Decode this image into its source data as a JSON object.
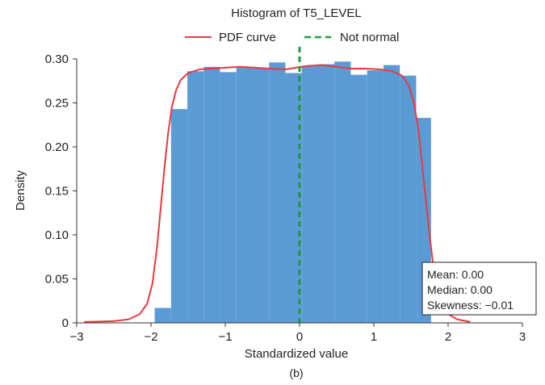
{
  "chart_data": {
    "type": "bar",
    "title": "Histogram of T5_LEVEL",
    "xlabel": "Standardized value",
    "ylabel": "Density",
    "xlim": [
      -3,
      3
    ],
    "ylim": [
      0,
      0.3
    ],
    "xticks": [
      -3,
      -2,
      -1,
      0,
      1,
      2,
      3
    ],
    "xtick_labels": [
      "−3",
      "−2",
      "−1",
      "0",
      "1",
      "2",
      "3"
    ],
    "yticks": [
      0,
      0.05,
      0.1,
      0.15,
      0.2,
      0.25,
      0.3
    ],
    "ytick_labels": [
      "0",
      "0.05",
      "0.10",
      "0.15",
      "0.20",
      "0.25",
      "0.30"
    ],
    "grid": false,
    "bins": [
      {
        "x0": -1.95,
        "x1": -1.73,
        "value": 0.017
      },
      {
        "x0": -1.73,
        "x1": -1.51,
        "value": 0.243
      },
      {
        "x0": -1.51,
        "x1": -1.29,
        "value": 0.286
      },
      {
        "x0": -1.29,
        "x1": -1.07,
        "value": 0.291
      },
      {
        "x0": -1.07,
        "x1": -0.85,
        "value": 0.285
      },
      {
        "x0": -0.85,
        "x1": -0.63,
        "value": 0.29
      },
      {
        "x0": -0.63,
        "x1": -0.41,
        "value": 0.289
      },
      {
        "x0": -0.41,
        "x1": -0.19,
        "value": 0.296
      },
      {
        "x0": -0.19,
        "x1": 0.03,
        "value": 0.284
      },
      {
        "x0": 0.03,
        "x1": 0.25,
        "value": 0.292
      },
      {
        "x0": 0.25,
        "x1": 0.47,
        "value": 0.294
      },
      {
        "x0": 0.47,
        "x1": 0.69,
        "value": 0.297
      },
      {
        "x0": 0.69,
        "x1": 0.91,
        "value": 0.282
      },
      {
        "x0": 0.91,
        "x1": 1.13,
        "value": 0.287
      },
      {
        "x0": 1.13,
        "x1": 1.35,
        "value": 0.293
      },
      {
        "x0": 1.35,
        "x1": 1.57,
        "value": 0.281
      },
      {
        "x0": 1.57,
        "x1": 1.77,
        "value": 0.233
      }
    ],
    "series": [
      {
        "name": "PDF curve",
        "type": "line",
        "color": "#e8393f",
        "x": [
          -2.9,
          -2.5,
          -2.3,
          -2.15,
          -2.05,
          -1.98,
          -1.92,
          -1.87,
          -1.82,
          -1.77,
          -1.72,
          -1.66,
          -1.6,
          -1.5,
          -1.35,
          -1.2,
          -1.0,
          -0.8,
          -0.6,
          -0.4,
          -0.2,
          -0.05,
          0.1,
          0.3,
          0.5,
          0.7,
          0.9,
          1.1,
          1.25,
          1.38,
          1.47,
          1.54,
          1.6,
          1.65,
          1.7,
          1.75,
          1.8,
          1.86,
          1.93,
          2.02,
          2.12,
          2.3
        ],
        "y": [
          0.001,
          0.002,
          0.004,
          0.01,
          0.022,
          0.045,
          0.085,
          0.13,
          0.175,
          0.215,
          0.245,
          0.265,
          0.276,
          0.284,
          0.288,
          0.289,
          0.29,
          0.291,
          0.29,
          0.289,
          0.288,
          0.29,
          0.292,
          0.293,
          0.291,
          0.289,
          0.289,
          0.288,
          0.286,
          0.281,
          0.27,
          0.25,
          0.22,
          0.18,
          0.14,
          0.1,
          0.065,
          0.038,
          0.02,
          0.009,
          0.004,
          0.001
        ]
      },
      {
        "name": "Not normal",
        "type": "vline",
        "color": "#1f9a3a",
        "x": 0
      }
    ],
    "bar_color": "#5b9bd5",
    "legend": {
      "position": "top-center",
      "entries": [
        "PDF curve",
        "Not normal"
      ]
    },
    "stats_box": {
      "position": "bottom-right",
      "lines": [
        "Mean: 0.00",
        "Median: 0.00",
        "Skewness: −0.01"
      ]
    },
    "caption": "(b)"
  }
}
